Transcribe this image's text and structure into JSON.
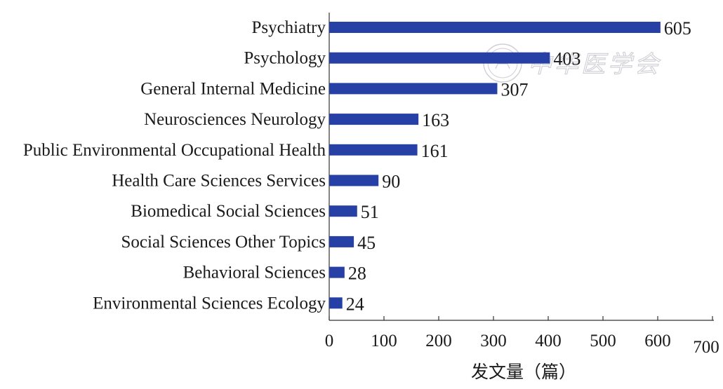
{
  "chart_data": {
    "type": "bar",
    "orientation": "horizontal",
    "categories": [
      "Psychiatry",
      "Psychology",
      "General Internal Medicine",
      "Neurosciences Neurology",
      "Public Environmental Occupational Health",
      "Health Care Sciences Services",
      "Biomedical Social Sciences",
      "Social Sciences Other Topics",
      "Behavioral Sciences",
      "Environmental Sciences Ecology"
    ],
    "values": [
      605,
      403,
      307,
      163,
      161,
      90,
      51,
      45,
      28,
      24
    ],
    "value_labels": [
      "605",
      "403",
      "307",
      "163",
      "161",
      "90",
      "51",
      "45",
      "28",
      "24"
    ],
    "xlabel": "发文量（篇）",
    "xlim": [
      0,
      700
    ],
    "xticks": [
      "0",
      "100",
      "200",
      "300",
      "400",
      "500",
      "600",
      "700"
    ],
    "grid": false,
    "bar_color": "#2740a6"
  },
  "watermark": {
    "text": "中华医学会"
  }
}
